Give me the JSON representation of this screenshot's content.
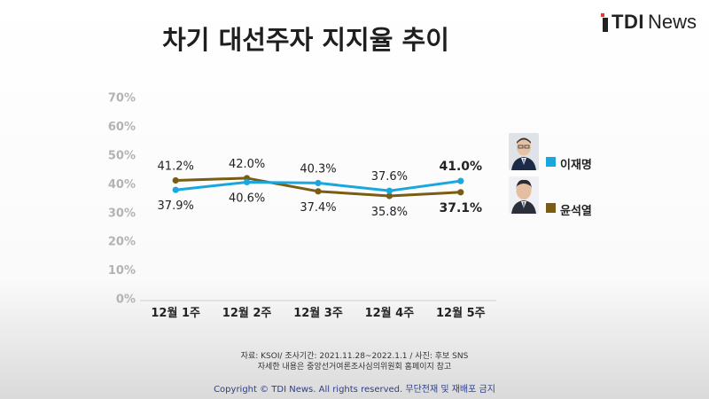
{
  "header": {
    "logo_brand": "TDI",
    "logo_suffix": "News"
  },
  "colors": {
    "series_lee": "#1aa7e0",
    "series_yoon": "#7a5c12",
    "title": "#1e1e1e",
    "copyright": "#2d3f8a"
  },
  "chart_data": {
    "type": "line",
    "title": "차기 대선주자 지지율 추이",
    "categories": [
      "12월 1주",
      "12월 2주",
      "12월 3주",
      "12월 4주",
      "12월 5주"
    ],
    "y_ticks": [
      "0%",
      "10%",
      "20%",
      "30%",
      "40%",
      "50%",
      "60%",
      "70%"
    ],
    "ylim": [
      0,
      70
    ],
    "grid": false,
    "legend_position": "right",
    "series": [
      {
        "name": "이재명",
        "values": [
          37.9,
          40.6,
          40.3,
          37.6,
          41.0
        ],
        "labels": [
          "37.9%",
          "40.6%",
          "40.3%",
          "37.6%",
          "41.0%"
        ]
      },
      {
        "name": "윤석열",
        "values": [
          41.2,
          42.0,
          37.4,
          35.8,
          37.1
        ],
        "labels": [
          "41.2%",
          "42.0%",
          "37.4%",
          "35.8%",
          "37.1%"
        ]
      }
    ]
  },
  "footer": {
    "source_line1": "자료: KSOI/ 조사기간: 2021.11.28~2022.1.1 / 사진: 후보 SNS",
    "source_line2": "자세한 내용은 중앙선거여론조사심의위원회 홈페이지 참고",
    "copyright": "Copyright © TDI News. All rights reserved. 무단전재 및 재배포 금지"
  }
}
